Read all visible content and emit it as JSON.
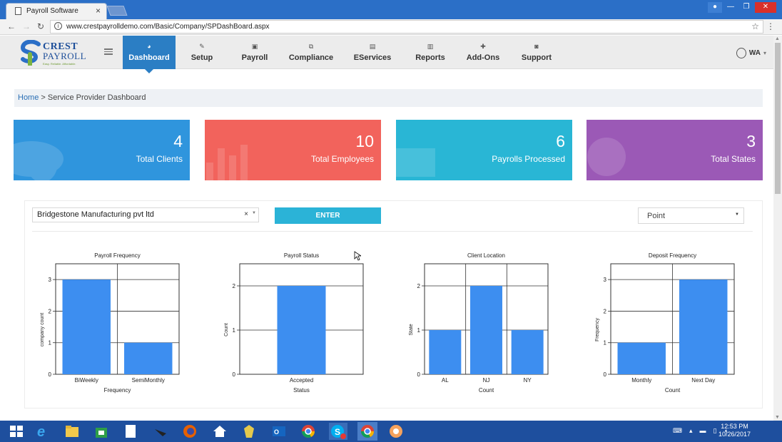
{
  "browser": {
    "tab_title": "Payroll Software",
    "url": "www.crestpayrolldemo.com/Basic/Company/SPDashBoard.aspx"
  },
  "logo": {
    "line1": "CREST",
    "line2": "PAYROLL",
    "tagline": "Easy. Reliable. Affordable."
  },
  "nav": [
    {
      "label": "Dashboard",
      "icon": "dashboard-icon",
      "active": true
    },
    {
      "label": "Setup",
      "icon": "wrench-icon"
    },
    {
      "label": "Payroll",
      "icon": "money-icon"
    },
    {
      "label": "Compliance",
      "icon": "copy-icon"
    },
    {
      "label": "EServices",
      "icon": "file-icon"
    },
    {
      "label": "Reports",
      "icon": "bar-chart-icon"
    },
    {
      "label": "Add-Ons",
      "icon": "plus-icon"
    },
    {
      "label": "Support",
      "icon": "message-icon"
    }
  ],
  "user": {
    "initials": "WA"
  },
  "breadcrumb": {
    "home": "Home",
    "separator": " > ",
    "current": "Service Provider Dashboard"
  },
  "stats": [
    {
      "value": "4",
      "label": "Total Clients",
      "color": "#2f95dd"
    },
    {
      "value": "10",
      "label": "Total Employees",
      "color": "#f2635c"
    },
    {
      "value": "6",
      "label": "Payrolls Processed",
      "color": "#29b6d5"
    },
    {
      "value": "3",
      "label": "Total States",
      "color": "#9b59b6"
    }
  ],
  "filters": {
    "company": "Bridgestone Manufacturing pvt ltd",
    "clear": "×",
    "enter": "ENTER",
    "chart_type": "Point"
  },
  "chart_data": [
    {
      "type": "bar",
      "title": "Payroll Frequency",
      "categories": [
        "BiWeekly",
        "SemiMonthly"
      ],
      "values": [
        3,
        1
      ],
      "xlabel": "Frequency",
      "ylabel": "company count",
      "ylim": [
        0,
        3.5
      ],
      "yticks": [
        0,
        1,
        2,
        3
      ],
      "grid": true
    },
    {
      "type": "bar",
      "title": "Payroll Status",
      "categories": [
        "Accepted"
      ],
      "values": [
        2
      ],
      "xlabel": "Status",
      "ylabel": "Count",
      "ylim": [
        0,
        2.5
      ],
      "yticks": [
        0,
        1,
        2
      ],
      "grid": true
    },
    {
      "type": "bar",
      "title": "Client Location",
      "categories": [
        "AL",
        "NJ",
        "NY"
      ],
      "values": [
        1,
        2,
        1
      ],
      "xlabel": "Count",
      "ylabel": "State",
      "ylim": [
        0,
        2.5
      ],
      "yticks": [
        0,
        1,
        2
      ],
      "grid": true
    },
    {
      "type": "bar",
      "title": "Deposit Frequency",
      "categories": [
        "Monthly",
        "Next Day"
      ],
      "values": [
        1,
        3
      ],
      "xlabel": "Count",
      "ylabel": "Frequency",
      "ylim": [
        0,
        3.5
      ],
      "yticks": [
        0,
        1,
        2,
        3
      ],
      "grid": true
    }
  ],
  "bar_color": "#3d8ef0",
  "taskbar": {
    "time": "12:53 PM",
    "date": "10/26/2017"
  }
}
